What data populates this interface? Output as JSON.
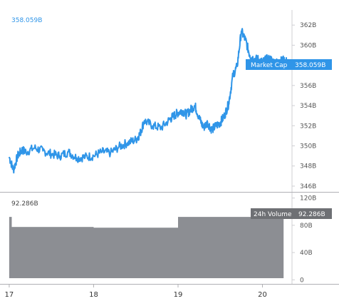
{
  "header": {
    "current_value": "358.059B"
  },
  "colors": {
    "line": "#2f95e8",
    "volume": "#8c8e93",
    "volume_tag": "#6e7074",
    "axis": "#cfcfd3",
    "grid": "#b0b0b4"
  },
  "chart_data": [
    {
      "type": "line",
      "name": "Market Cap",
      "label": "Market Cap",
      "value_label": "358.059B",
      "ylim": [
        345.5,
        363.5
      ],
      "yticks": [
        346,
        348,
        350,
        352,
        354,
        356,
        358,
        360,
        362
      ],
      "ytick_labels": [
        "346B",
        "348B",
        "350B",
        "352B",
        "354B",
        "356B",
        "358B",
        "360B",
        "362B"
      ],
      "x": [
        17.0,
        17.05,
        17.1,
        17.15,
        17.2,
        17.3,
        17.4,
        17.5,
        17.6,
        17.7,
        17.8,
        17.9,
        18.0,
        18.1,
        18.2,
        18.3,
        18.4,
        18.5,
        18.55,
        18.6,
        18.7,
        18.8,
        18.9,
        18.95,
        19.0,
        19.05,
        19.1,
        19.15,
        19.2,
        19.25,
        19.3,
        19.35,
        19.4,
        19.45,
        19.5,
        19.55,
        19.6,
        19.65,
        19.7,
        19.75,
        19.8,
        19.85,
        19.9,
        19.95,
        20.0,
        20.05,
        20.1,
        20.15,
        20.2,
        20.25,
        20.3,
        20.35
      ],
      "y": [
        348.9,
        347.6,
        349.0,
        349.6,
        349.4,
        349.8,
        349.5,
        349.2,
        349.0,
        349.4,
        348.8,
        348.9,
        349.0,
        349.4,
        349.3,
        349.9,
        350.3,
        350.6,
        351.2,
        352.5,
        352.0,
        351.8,
        352.6,
        353.0,
        353.3,
        353.5,
        353.1,
        353.6,
        354.0,
        352.8,
        351.8,
        352.3,
        351.6,
        352.0,
        352.3,
        353.0,
        354.2,
        357.0,
        357.9,
        361.4,
        360.5,
        359.0,
        358.6,
        358.6,
        358.3,
        358.6,
        358.6,
        358.2,
        358.4,
        358.5,
        358.3,
        358.059
      ]
    },
    {
      "type": "bar",
      "name": "24h Volume",
      "label": "24h Volume",
      "value_label": "92.286B",
      "ylim": [
        -6,
        128
      ],
      "yticks": [
        0,
        40,
        80,
        120
      ],
      "ytick_labels": [
        "0",
        "40B",
        "80B",
        "120B"
      ],
      "segments": [
        {
          "from": 17.0,
          "to": 17.03,
          "value": 92.3
        },
        {
          "from": 17.03,
          "to": 18.0,
          "value": 77.5
        },
        {
          "from": 18.0,
          "to": 19.0,
          "value": 76.5
        },
        {
          "from": 19.0,
          "to": 20.25,
          "value": 92.286
        }
      ]
    }
  ],
  "x_axis": {
    "xlim": [
      16.95,
      20.35
    ],
    "ticks": [
      17,
      18,
      19,
      20
    ],
    "tick_labels": [
      "17",
      "18",
      "19",
      "20"
    ]
  }
}
